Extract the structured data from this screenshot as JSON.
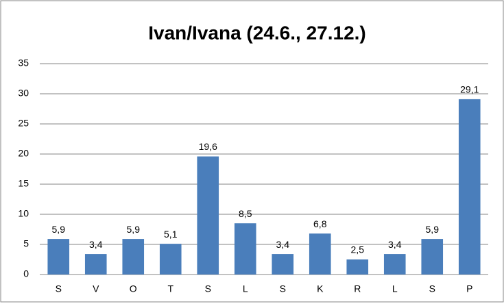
{
  "chart_data": {
    "type": "bar",
    "title": "Ivan/Ivana (24.6., 27.12.)",
    "categories": [
      "S",
      "V",
      "O",
      "T",
      "S",
      "L",
      "S",
      "K",
      "R",
      "L",
      "S",
      "P"
    ],
    "values": [
      5.9,
      3.4,
      5.9,
      5.1,
      19.6,
      8.5,
      3.4,
      6.8,
      2.5,
      3.4,
      5.9,
      29.1
    ],
    "value_labels": [
      "5,9",
      "3,4",
      "5,9",
      "5,1",
      "19,6",
      "8,5",
      "3,4",
      "6,8",
      "2,5",
      "3,4",
      "5,9",
      "29,1"
    ],
    "color": "#4a7ebb",
    "ylim": [
      0,
      35
    ],
    "yticks": [
      0,
      5,
      10,
      15,
      20,
      25,
      30,
      35
    ],
    "grid": true
  }
}
